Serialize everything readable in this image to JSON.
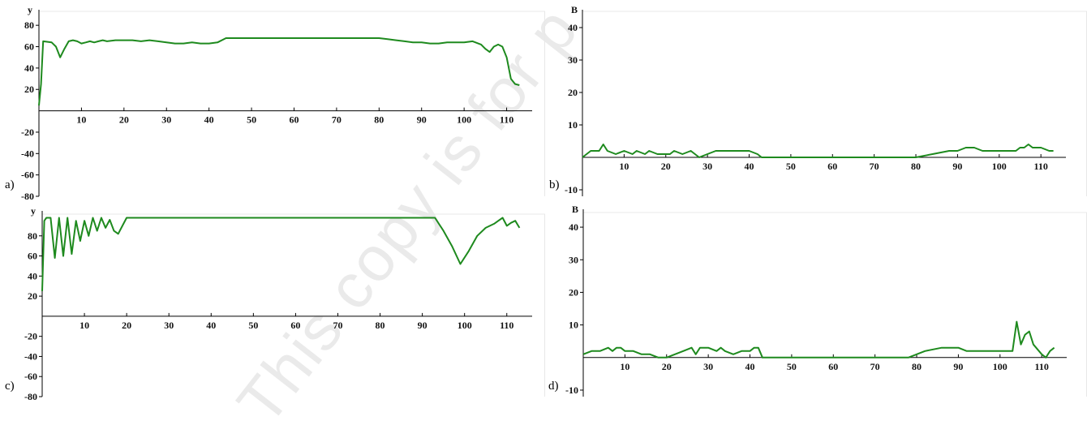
{
  "watermark": "This copy is for p",
  "panels": [
    {
      "id": "a",
      "letter": "a)",
      "axis_name": "y",
      "color": "#1e8a1e",
      "chart_data": {
        "type": "line",
        "xlim": [
          0,
          116
        ],
        "ylim": [
          -80,
          90
        ],
        "x_ticks": [
          10,
          20,
          30,
          40,
          50,
          60,
          70,
          80,
          90,
          100,
          110
        ],
        "y_ticks": [
          80,
          60,
          40,
          20,
          -20,
          -40,
          -60,
          -80
        ],
        "series": [
          {
            "x": [
              0,
              0.5,
              1,
              3,
              4,
              5,
              6,
              7,
              8,
              9,
              10,
              11,
              12,
              13,
              14,
              15,
              16,
              18,
              20,
              22,
              24,
              26,
              28,
              30,
              32,
              34,
              36,
              38,
              40,
              42,
              44,
              50,
              60,
              70,
              80,
              82,
              84,
              86,
              88,
              90,
              92,
              94,
              96,
              98,
              100,
              102,
              104,
              105,
              106,
              107,
              108,
              109,
              110,
              111,
              112,
              113
            ],
            "y": [
              5,
              25,
              65,
              64,
              60,
              50,
              58,
              65,
              66,
              65,
              63,
              64,
              65,
              64,
              65,
              66,
              65,
              66,
              66,
              66,
              65,
              66,
              65,
              64,
              63,
              63,
              64,
              63,
              63,
              64,
              68,
              68,
              68,
              68,
              68,
              67,
              66,
              65,
              64,
              64,
              63,
              63,
              64,
              64,
              64,
              65,
              62,
              58,
              55,
              60,
              62,
              60,
              50,
              30,
              25,
              24
            ]
          }
        ]
      }
    },
    {
      "id": "b",
      "letter": "b)",
      "axis_name": "B",
      "color": "#1e8a1e",
      "chart_data": {
        "type": "line",
        "xlim": [
          0,
          116
        ],
        "ylim": [
          -12,
          44
        ],
        "x_ticks": [
          10,
          20,
          30,
          40,
          50,
          60,
          70,
          80,
          90,
          100,
          110
        ],
        "y_ticks": [
          40,
          30,
          20,
          10,
          -10
        ],
        "series": [
          {
            "x": [
              0,
              2,
              4,
              5,
              6,
              8,
              10,
              12,
              13,
              15,
              16,
              18,
              20,
              21,
              22,
              24,
              26,
              28,
              30,
              32,
              34,
              36,
              38,
              40,
              42,
              43,
              44,
              50,
              60,
              70,
              80,
              84,
              88,
              90,
              92,
              94,
              96,
              98,
              100,
              102,
              104,
              105,
              106,
              107,
              108,
              110,
              112,
              113
            ],
            "y": [
              0,
              2,
              2,
              4,
              2,
              1,
              2,
              1,
              2,
              1,
              2,
              1,
              1,
              1,
              2,
              1,
              2,
              0,
              1,
              2,
              2,
              2,
              2,
              2,
              1,
              0,
              0,
              0,
              0,
              0,
              0,
              1,
              2,
              2,
              3,
              3,
              2,
              2,
              2,
              2,
              2,
              3,
              3,
              4,
              3,
              3,
              2,
              2
            ]
          }
        ]
      }
    },
    {
      "id": "c",
      "letter": "c)",
      "axis_name": "y",
      "color": "#1e8a1e",
      "chart_data": {
        "type": "line",
        "xlim": [
          0,
          116
        ],
        "ylim": [
          -80,
          100
        ],
        "x_ticks": [
          10,
          20,
          30,
          40,
          50,
          60,
          70,
          80,
          90,
          100,
          110
        ],
        "y_ticks": [
          80,
          60,
          40,
          20,
          -20,
          -40,
          -60,
          -80
        ],
        "series": [
          {
            "x": [
              0,
              0.5,
              1,
              2,
              3,
              4,
              5,
              6,
              7,
              8,
              9,
              10,
              11,
              12,
              13,
              14,
              15,
              16,
              17,
              18,
              19,
              20,
              30,
              40,
              50,
              60,
              70,
              80,
              90,
              93,
              95,
              97,
              99,
              101,
              103,
              105,
              107,
              108,
              109,
              110,
              111,
              112,
              113
            ],
            "y": [
              25,
              95,
              98,
              98,
              58,
              98,
              60,
              98,
              62,
              95,
              75,
              95,
              80,
              98,
              85,
              98,
              88,
              96,
              85,
              82,
              90,
              98,
              98,
              98,
              98,
              98,
              98,
              98,
              98,
              98,
              85,
              70,
              52,
              65,
              80,
              88,
              92,
              95,
              98,
              90,
              93,
              95,
              88
            ]
          }
        ]
      }
    },
    {
      "id": "d",
      "letter": "d)",
      "axis_name": "B",
      "color": "#1e8a1e",
      "chart_data": {
        "type": "line",
        "xlim": [
          0,
          116
        ],
        "ylim": [
          -12,
          44
        ],
        "x_ticks": [
          10,
          20,
          30,
          40,
          50,
          60,
          70,
          80,
          90,
          100,
          110
        ],
        "y_ticks": [
          40,
          30,
          20,
          10,
          -10
        ],
        "series": [
          {
            "x": [
              0,
              2,
              4,
              6,
              7,
              8,
              9,
              10,
              12,
              14,
              16,
              18,
              20,
              22,
              24,
              26,
              27,
              28,
              30,
              32,
              33,
              34,
              36,
              38,
              40,
              41,
              42,
              43,
              50,
              60,
              70,
              78,
              82,
              86,
              88,
              90,
              92,
              96,
              100,
              103,
              104,
              105,
              106,
              107,
              108,
              110,
              111,
              112,
              113
            ],
            "y": [
              1,
              2,
              2,
              3,
              2,
              3,
              3,
              2,
              2,
              1,
              1,
              0,
              0,
              1,
              2,
              3,
              1,
              3,
              3,
              2,
              3,
              2,
              1,
              2,
              2,
              3,
              3,
              0,
              0,
              0,
              0,
              0,
              2,
              3,
              3,
              3,
              2,
              2,
              2,
              2,
              11,
              4,
              7,
              8,
              4,
              1,
              0,
              2,
              3
            ]
          }
        ]
      }
    }
  ]
}
